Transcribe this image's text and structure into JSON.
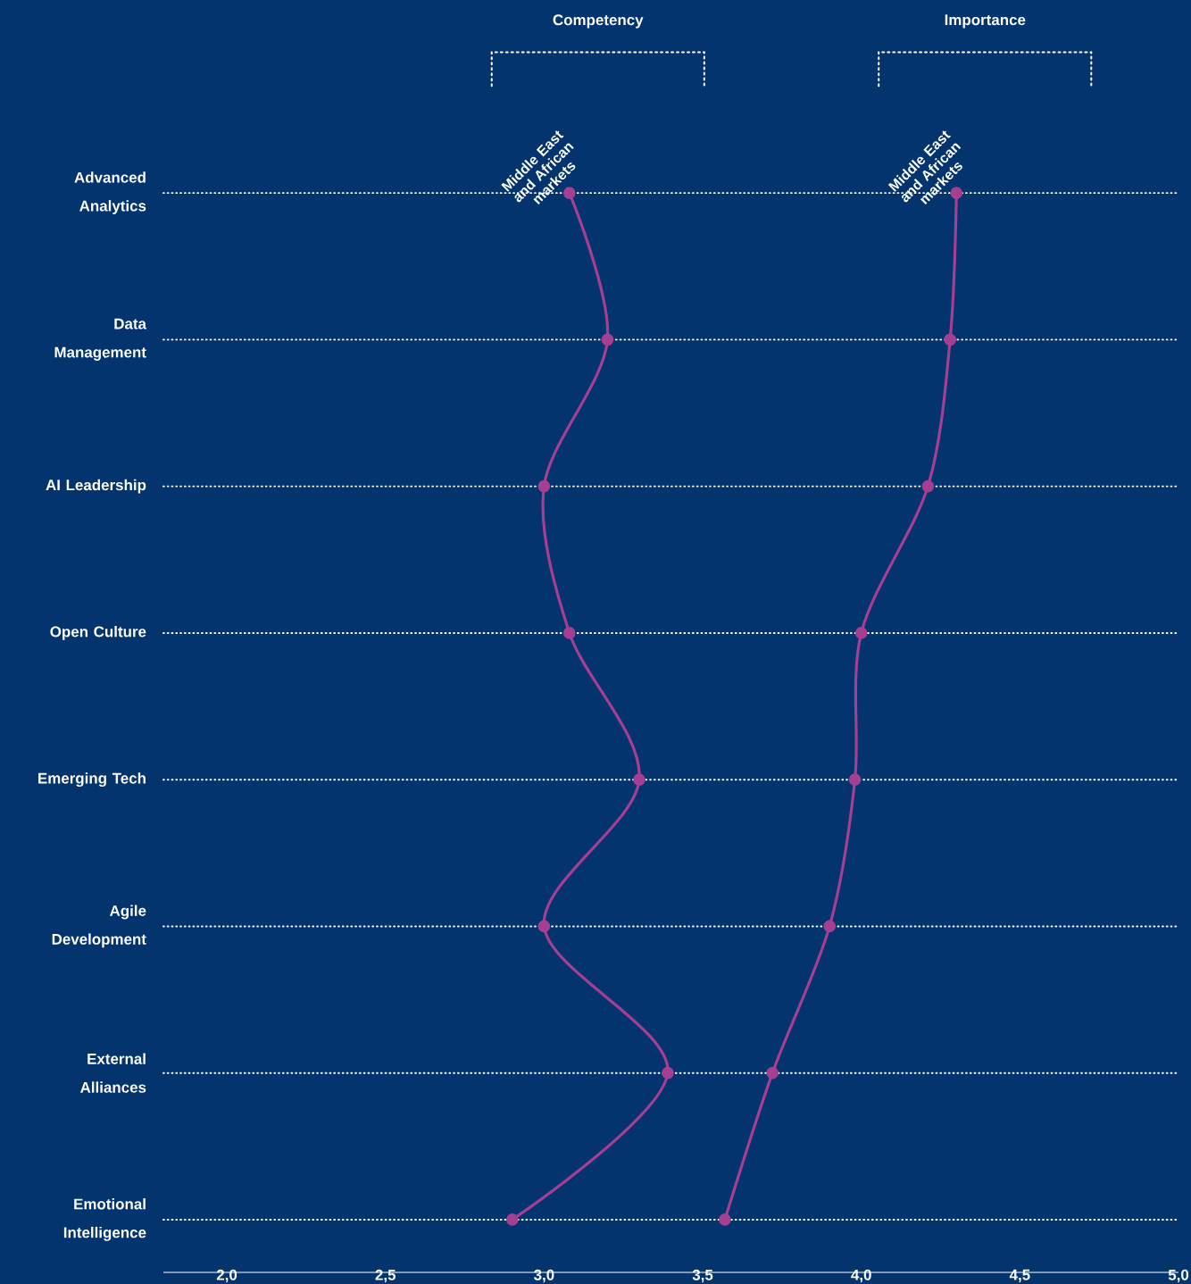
{
  "chart_data": {
    "type": "line",
    "orientation": "horizontal",
    "categories": [
      "Advanced Analytics",
      "Data Management",
      "AI Leadership",
      "Open Culture",
      "Emerging Tech",
      "Agile Development",
      "External Alliances",
      "Emotional Intelligence"
    ],
    "series": [
      {
        "name": "Middle East and African markets",
        "color": "#a63f92",
        "values": [
          3.08,
          3.2,
          3.0,
          3.08,
          3.3,
          3.0,
          3.39,
          2.9
        ]
      },
      {
        "name": "Middle East and African markets",
        "color": "#a63f92",
        "values": [
          4.3,
          4.28,
          4.21,
          4.0,
          3.98,
          3.9,
          3.72,
          3.57
        ]
      }
    ],
    "annotations": [
      "Competency",
      "Importance"
    ],
    "xlim": [
      1.8,
      5.0
    ],
    "xticks": [
      {
        "value": 2.0,
        "label": "2,0"
      },
      {
        "value": 2.5,
        "label": "2,5"
      },
      {
        "value": 3.0,
        "label": "3,0"
      },
      {
        "value": 3.5,
        "label": "3,5"
      },
      {
        "value": 4.0,
        "label": "4,0"
      },
      {
        "value": 4.5,
        "label": "4,5"
      },
      {
        "value": 5.0,
        "label": "5,0"
      }
    ],
    "grid": "y",
    "marker": "circle",
    "line_style": "solid",
    "legend": false
  }
}
